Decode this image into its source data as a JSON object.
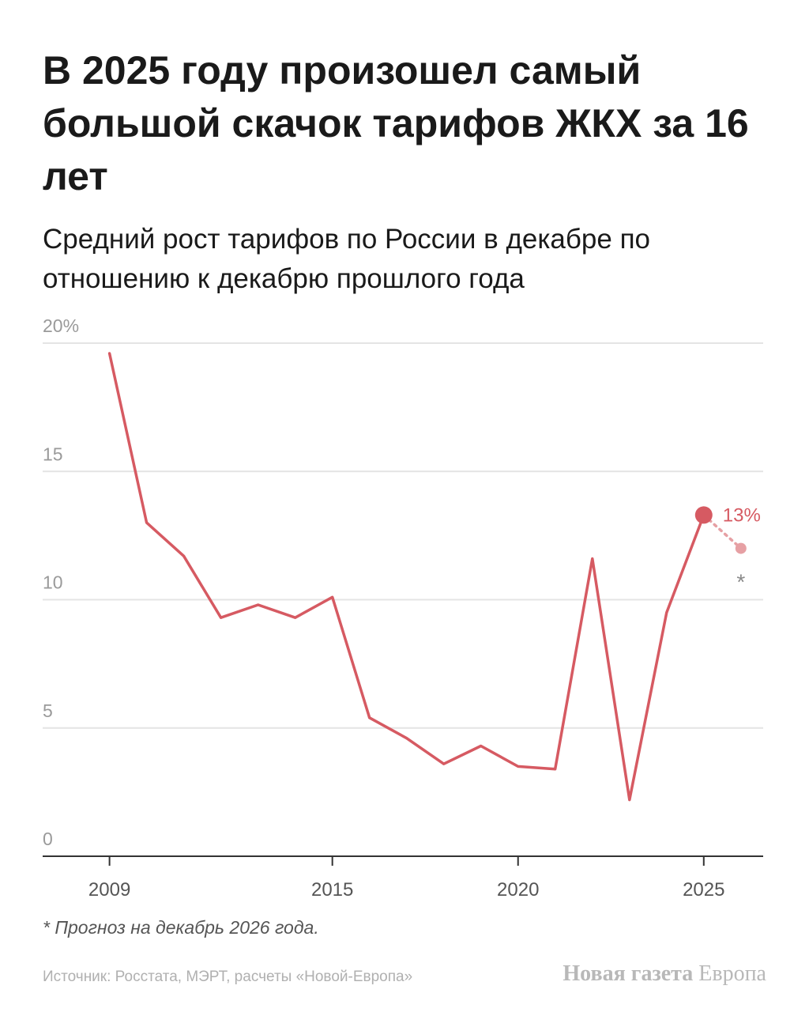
{
  "header": {
    "title": "В 2025 году произошел самый большой скачок тарифов ЖКХ за 16 лет",
    "subtitle": "Средний рост тарифов по России в декабре по отношению к декабрю прошлого года"
  },
  "chart_data": {
    "type": "line",
    "x": [
      2009,
      2010,
      2011,
      2012,
      2013,
      2014,
      2015,
      2016,
      2017,
      2018,
      2019,
      2020,
      2021,
      2022,
      2023,
      2024,
      2025
    ],
    "series": [
      {
        "values": [
          19.6,
          13.0,
          11.7,
          9.3,
          9.8,
          9.3,
          10.1,
          5.4,
          4.6,
          3.6,
          4.3,
          3.5,
          3.4,
          11.6,
          2.2,
          9.5,
          13.3
        ]
      }
    ],
    "forecast": {
      "x": 2026,
      "value": 12.0,
      "marker": "*"
    },
    "highlight_label": "13%",
    "y_ticks": [
      "0",
      "5",
      "10",
      "15",
      "20%"
    ],
    "y_tick_values": [
      0,
      5,
      10,
      15,
      20
    ],
    "x_ticks": [
      "2009",
      "2015",
      "2020",
      "2025"
    ],
    "x_tick_values": [
      2009,
      2015,
      2020,
      2025
    ],
    "ylim": [
      0,
      20
    ],
    "xlim": [
      2007.2,
      2026.6
    ],
    "grid": true,
    "color": "#d65a62",
    "forecast_color": "#e6a0a4"
  },
  "footer": {
    "footnote": "* Прогноз на декабрь 2026 года.",
    "source": "Источник: Росстата, МЭРТ, расчеты «Новой-Европа»",
    "brand_bold": "Новая газета",
    "brand_regular": "Европа"
  }
}
